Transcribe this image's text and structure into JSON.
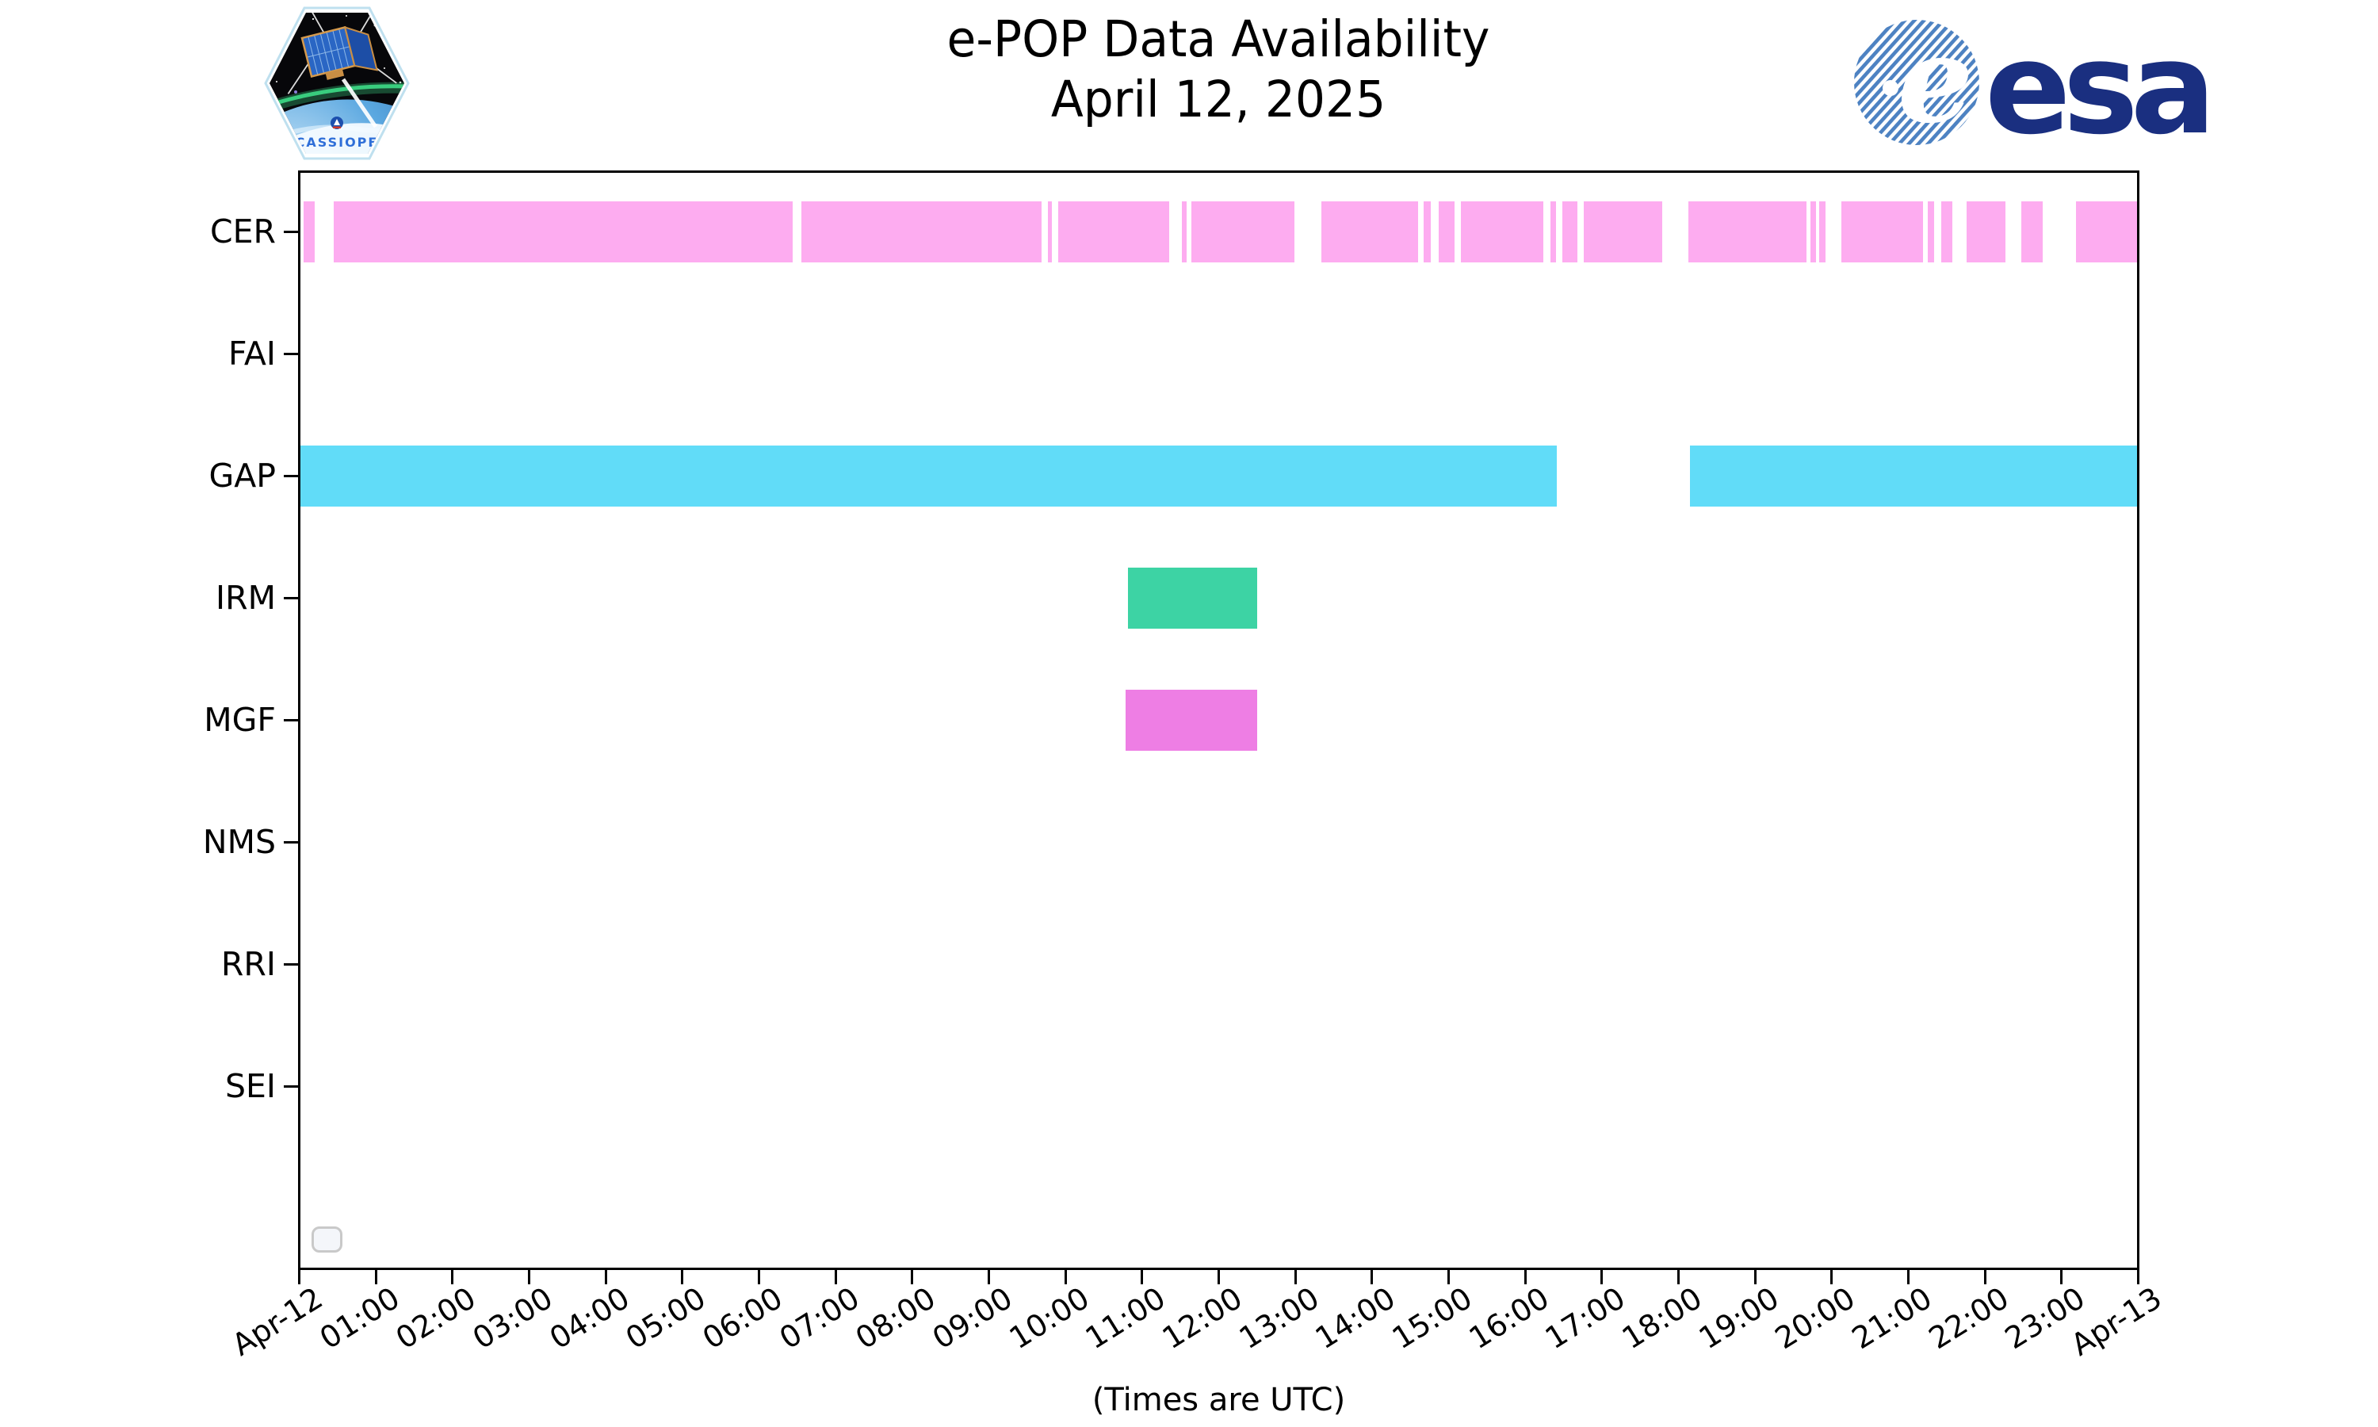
{
  "header": {
    "title_line1": "e-POP Data Availability",
    "title_line2": "April 12, 2025",
    "cassiope_text": "CASSIOPE",
    "esa_text": "esa"
  },
  "footer": {
    "caption": "(Times are UTC)"
  },
  "icons": {
    "cassiope_patch": "cassiope-mission-patch",
    "esa_logo": "esa-logo"
  },
  "colors": {
    "cer": "#fdacf0",
    "gap": "#61dcf8",
    "irm": "#3dd3a4",
    "mgf": "#ee7ee4",
    "axis": "#000000",
    "legend_border": "#c9c9c9",
    "esa_navy": "#1a2f80",
    "esa_stripe_blue": "#4d82c2",
    "patch_text_blue": "#2f6fd8"
  },
  "chart_data": {
    "type": "timeline",
    "title": "e-POP Data Availability",
    "subtitle": "April 12, 2025",
    "xlabel": "(Times are UTC)",
    "ylabel": "",
    "x_range_hours": [
      0,
      24
    ],
    "grid": false,
    "legend_position": "lower-left",
    "legend_empty": true,
    "x_tick_labels": [
      "Apr-12",
      "01:00",
      "02:00",
      "03:00",
      "04:00",
      "05:00",
      "06:00",
      "07:00",
      "08:00",
      "09:00",
      "10:00",
      "11:00",
      "12:00",
      "13:00",
      "14:00",
      "15:00",
      "16:00",
      "17:00",
      "18:00",
      "19:00",
      "20:00",
      "21:00",
      "22:00",
      "23:00",
      "Apr-13"
    ],
    "rows": [
      {
        "label": "CER",
        "color": "#fdacf0",
        "intervals": [
          [
            0.04,
            0.19
          ],
          [
            0.43,
            6.43
          ],
          [
            6.55,
            9.68
          ],
          [
            9.77,
            9.82
          ],
          [
            9.9,
            11.35
          ],
          [
            11.52,
            11.58
          ],
          [
            11.64,
            12.99
          ],
          [
            13.34,
            14.6
          ],
          [
            14.68,
            14.77
          ],
          [
            14.87,
            15.08
          ],
          [
            15.16,
            16.24
          ],
          [
            16.33,
            16.41
          ],
          [
            16.49,
            16.69
          ],
          [
            16.77,
            17.8
          ],
          [
            18.14,
            19.68
          ],
          [
            19.73,
            19.81
          ],
          [
            19.85,
            19.93
          ],
          [
            20.14,
            21.2
          ],
          [
            21.27,
            21.35
          ],
          [
            21.44,
            21.59
          ],
          [
            21.77,
            22.28
          ],
          [
            22.49,
            22.77
          ],
          [
            23.2,
            24.0
          ]
        ]
      },
      {
        "label": "FAI",
        "color": null,
        "intervals": []
      },
      {
        "label": "GAP",
        "color": "#61dcf8",
        "intervals": [
          [
            0.0,
            16.42
          ],
          [
            18.16,
            24.0
          ]
        ]
      },
      {
        "label": "IRM",
        "color": "#3dd3a4",
        "intervals": [
          [
            10.81,
            12.5
          ]
        ]
      },
      {
        "label": "MGF",
        "color": "#ee7ee4",
        "intervals": [
          [
            10.78,
            12.5
          ]
        ]
      },
      {
        "label": "NMS",
        "color": null,
        "intervals": []
      },
      {
        "label": "RRI",
        "color": null,
        "intervals": []
      },
      {
        "label": "SEI",
        "color": null,
        "intervals": []
      }
    ]
  }
}
